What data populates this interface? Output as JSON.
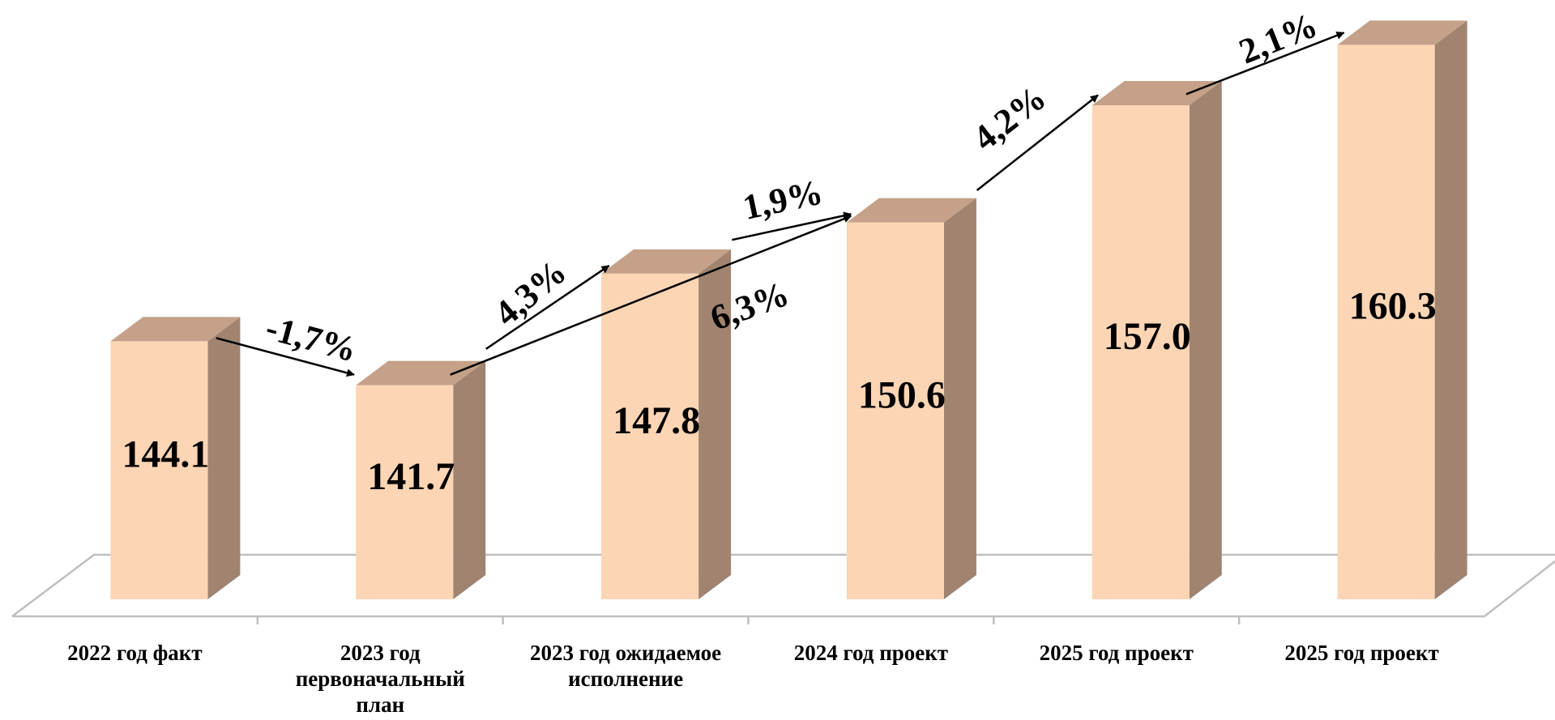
{
  "chart_data": {
    "type": "bar3d",
    "categories": [
      "2022 год факт",
      "2023 год первоначальный план",
      "2023 год ожидаемое исполнение",
      "2024 год проект",
      "2025 год проект",
      "2025 год проект"
    ],
    "values": [
      144.1,
      141.7,
      147.8,
      150.6,
      157.0,
      160.3
    ],
    "value_labels": [
      "144.1",
      "141.7",
      "147.8",
      "150.6",
      "157.0",
      "160.3"
    ],
    "ylim": [
      130,
      162
    ],
    "colors": {
      "front": "#fcd5b4",
      "side": "#a08470",
      "top": "#c4a188"
    },
    "annotations": [
      {
        "text": "-1,7%"
      },
      {
        "text": "4,3%"
      },
      {
        "text": "6,3%"
      },
      {
        "text": "1,9%"
      },
      {
        "text": "4,2%"
      },
      {
        "text": "2,1%"
      }
    ]
  }
}
